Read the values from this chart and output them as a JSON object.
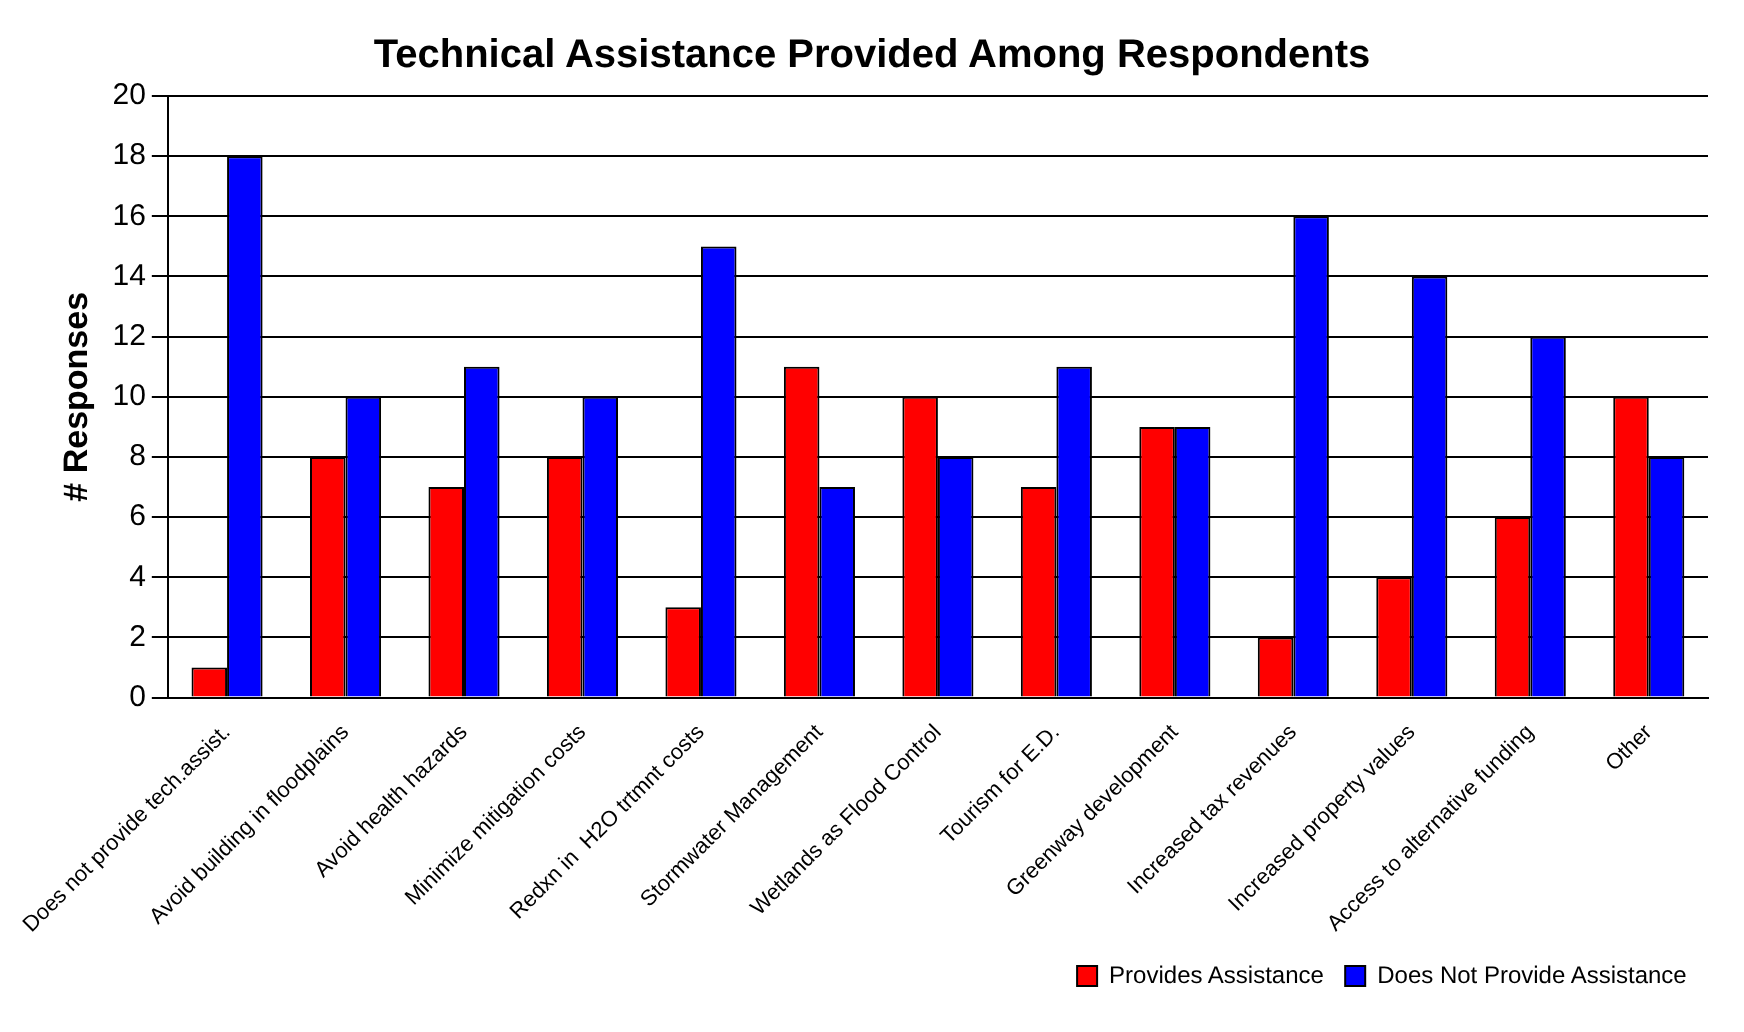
{
  "chart_data": {
    "type": "bar",
    "title": "Technical Assistance Provided Among Respondents",
    "ylabel": "# Responses",
    "categories": [
      "Does not provide tech.assist.",
      "Avoid building in floodplains",
      "Avoid health hazards",
      "Minimize mitigation costs",
      "Redxn in  H2O trtmnt costs",
      "Stormwater Management",
      "Wetlands as Flood Control",
      "Tourism for E.D.",
      "Greenway development",
      "Increased tax revenues",
      "Increased property values",
      "Access to alternative funding",
      "Other"
    ],
    "series": [
      {
        "name": "Provides Assistance",
        "color": "#ff0000",
        "values": [
          1,
          8,
          7,
          8,
          3,
          11,
          10,
          7,
          9,
          2,
          4,
          6,
          10
        ]
      },
      {
        "name": "Does Not Provide Assistance",
        "color": "#0000ff",
        "values": [
          18,
          10,
          11,
          10,
          15,
          7,
          8,
          11,
          9,
          16,
          14,
          12,
          8
        ]
      }
    ],
    "ylim": [
      0,
      20
    ],
    "yticks": [
      0,
      2,
      4,
      6,
      8,
      10,
      12,
      14,
      16,
      18,
      20
    ],
    "grid": "y",
    "legend": "bottom right"
  }
}
